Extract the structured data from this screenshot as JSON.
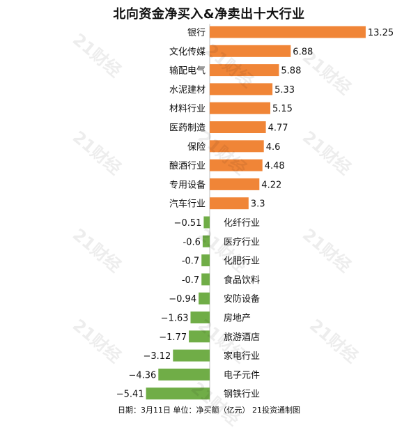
{
  "watermark_text": "21财经",
  "chart_data": {
    "type": "bar",
    "orientation": "horizontal",
    "title": "北向资金净买入&净卖出十大行业",
    "footer": "日期：3月11日 单位：净买额（亿元） 21投资通制图",
    "colors": {
      "positive": "#f08537",
      "negative": "#70ad47"
    },
    "categories": [
      "银行",
      "文化传媒",
      "输配电气",
      "水泥建材",
      "材料行业",
      "医药制造",
      "保险",
      "酿酒行业",
      "专用设备",
      "汽车行业",
      "化纤行业",
      "医疗行业",
      "化肥行业",
      "食品饮料",
      "安防设备",
      "房地产",
      "旅游酒店",
      "家电行业",
      "电子元件",
      "钢铁行业"
    ],
    "values": [
      13.25,
      6.88,
      5.88,
      5.33,
      5.15,
      4.77,
      4.6,
      4.48,
      4.22,
      3.3,
      -0.51,
      -0.6,
      -0.7,
      -0.7,
      -0.94,
      -1.63,
      -1.77,
      -3.12,
      -4.36,
      -5.41
    ],
    "value_labels": [
      "13.25",
      "6.88",
      "5.88",
      "5.33",
      "5.15",
      "4.77",
      "4.6",
      "4.48",
      "4.22",
      "3.3",
      "−0.51",
      "-0.6",
      "-0.7",
      "-0.7",
      "−0.94",
      "−1.63",
      "−1.77",
      "−3.12",
      "−4.36",
      "−5.41"
    ],
    "xlim": [
      -5.41,
      13.25
    ],
    "grid": false,
    "legend": "none"
  }
}
